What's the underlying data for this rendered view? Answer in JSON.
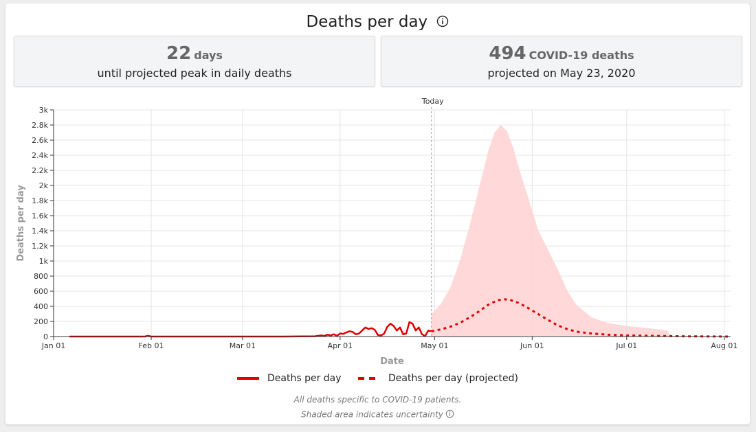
{
  "header": {
    "title": "Deaths per day",
    "info_icon": "info-icon"
  },
  "stats": {
    "peak": {
      "number": "22",
      "unit": "days",
      "caption": "until projected peak in daily deaths"
    },
    "max": {
      "number": "494",
      "unit": "COVID-19 deaths",
      "caption": "projected on May 23, 2020"
    }
  },
  "chart_data": {
    "type": "line",
    "xlabel": "Date",
    "ylabel": "Deaths per day",
    "x_domain": [
      "2020-01-01",
      "2020-08-03"
    ],
    "ylim": [
      0,
      3000
    ],
    "y_ticks": [
      0,
      200,
      400,
      600,
      800,
      1000,
      1200,
      1400,
      1600,
      1800,
      2000,
      2200,
      2400,
      2600,
      2800,
      3000
    ],
    "y_tick_labels": [
      "0",
      "200",
      "400",
      "600",
      "800",
      "1k",
      "1.2k",
      "1.4k",
      "1.6k",
      "1.8k",
      "2k",
      "2.2k",
      "2.4k",
      "2.6k",
      "2.8k",
      "3k"
    ],
    "x_ticks": [
      "2020-01-01",
      "2020-02-01",
      "2020-03-01",
      "2020-04-01",
      "2020-05-01",
      "2020-06-01",
      "2020-07-01",
      "2020-08-01"
    ],
    "x_tick_labels": [
      "Jan 01",
      "Feb 01",
      "Mar 01",
      "Apr 01",
      "May 01",
      "Jun 01",
      "Jul 01",
      "Aug 01"
    ],
    "grid": true,
    "today": {
      "date": "2020-04-30",
      "label": "Today"
    },
    "series": [
      {
        "name": "Deaths per day",
        "style": "solid",
        "color": "#e00000",
        "points": [
          [
            "2020-01-06",
            0
          ],
          [
            "2020-01-30",
            0
          ],
          [
            "2020-01-31",
            10
          ],
          [
            "2020-02-01",
            0
          ],
          [
            "2020-03-14",
            0
          ],
          [
            "2020-03-20",
            2
          ],
          [
            "2020-03-24",
            4
          ],
          [
            "2020-03-26",
            15
          ],
          [
            "2020-03-27",
            8
          ],
          [
            "2020-03-28",
            25
          ],
          [
            "2020-03-29",
            15
          ],
          [
            "2020-03-30",
            30
          ],
          [
            "2020-03-31",
            10
          ],
          [
            "2020-04-01",
            40
          ],
          [
            "2020-04-02",
            35
          ],
          [
            "2020-04-03",
            55
          ],
          [
            "2020-04-04",
            70
          ],
          [
            "2020-04-05",
            60
          ],
          [
            "2020-04-06",
            30
          ],
          [
            "2020-04-07",
            40
          ],
          [
            "2020-04-08",
            80
          ],
          [
            "2020-04-09",
            120
          ],
          [
            "2020-04-10",
            100
          ],
          [
            "2020-04-11",
            110
          ],
          [
            "2020-04-12",
            90
          ],
          [
            "2020-04-13",
            20
          ],
          [
            "2020-04-14",
            15
          ],
          [
            "2020-04-15",
            40
          ],
          [
            "2020-04-16",
            130
          ],
          [
            "2020-04-17",
            170
          ],
          [
            "2020-04-18",
            140
          ],
          [
            "2020-04-19",
            80
          ],
          [
            "2020-04-20",
            120
          ],
          [
            "2020-04-21",
            30
          ],
          [
            "2020-04-22",
            40
          ],
          [
            "2020-04-23",
            190
          ],
          [
            "2020-04-24",
            170
          ],
          [
            "2020-04-25",
            80
          ],
          [
            "2020-04-26",
            120
          ],
          [
            "2020-04-27",
            30
          ],
          [
            "2020-04-28",
            5
          ],
          [
            "2020-04-29",
            80
          ],
          [
            "2020-04-30",
            70
          ]
        ]
      },
      {
        "name": "Deaths per day (projected)",
        "style": "dashed",
        "color": "#e00000",
        "points": [
          [
            "2020-04-30",
            70
          ],
          [
            "2020-05-03",
            95
          ],
          [
            "2020-05-06",
            130
          ],
          [
            "2020-05-09",
            180
          ],
          [
            "2020-05-12",
            250
          ],
          [
            "2020-05-15",
            330
          ],
          [
            "2020-05-18",
            420
          ],
          [
            "2020-05-21",
            480
          ],
          [
            "2020-05-23",
            494
          ],
          [
            "2020-05-25",
            485
          ],
          [
            "2020-05-28",
            440
          ],
          [
            "2020-05-31",
            370
          ],
          [
            "2020-06-03",
            295
          ],
          [
            "2020-06-06",
            220
          ],
          [
            "2020-06-09",
            150
          ],
          [
            "2020-06-12",
            100
          ],
          [
            "2020-06-15",
            65
          ],
          [
            "2020-06-20",
            40
          ],
          [
            "2020-06-25",
            25
          ],
          [
            "2020-07-01",
            15
          ],
          [
            "2020-07-10",
            8
          ],
          [
            "2020-07-20",
            3
          ],
          [
            "2020-08-03",
            0
          ]
        ]
      }
    ],
    "uncertainty": {
      "color": "#ffd2d2",
      "upper": [
        [
          "2020-04-30",
          300
        ],
        [
          "2020-05-03",
          430
        ],
        [
          "2020-05-06",
          650
        ],
        [
          "2020-05-09",
          1000
        ],
        [
          "2020-05-12",
          1450
        ],
        [
          "2020-05-15",
          1950
        ],
        [
          "2020-05-18",
          2450
        ],
        [
          "2020-05-20",
          2700
        ],
        [
          "2020-05-22",
          2800
        ],
        [
          "2020-05-24",
          2720
        ],
        [
          "2020-05-26",
          2500
        ],
        [
          "2020-05-28",
          2200
        ],
        [
          "2020-05-31",
          1800
        ],
        [
          "2020-06-03",
          1400
        ],
        [
          "2020-06-06",
          1150
        ],
        [
          "2020-06-09",
          900
        ],
        [
          "2020-06-12",
          620
        ],
        [
          "2020-06-15",
          420
        ],
        [
          "2020-06-20",
          250
        ],
        [
          "2020-06-25",
          180
        ],
        [
          "2020-07-01",
          140
        ],
        [
          "2020-07-08",
          110
        ],
        [
          "2020-07-14",
          80
        ],
        [
          "2020-07-15",
          0
        ]
      ],
      "lower": [
        [
          "2020-07-15",
          0
        ],
        [
          "2020-06-01",
          10
        ],
        [
          "2020-05-23",
          2
        ],
        [
          "2020-04-30",
          0
        ]
      ]
    }
  },
  "legend": {
    "solid_label": "Deaths per day",
    "dashed_label": "Deaths per day (projected)"
  },
  "footnotes": {
    "line1": "All deaths specific to COVID-19 patients.",
    "line2": "Shaded area indicates uncertainty"
  }
}
